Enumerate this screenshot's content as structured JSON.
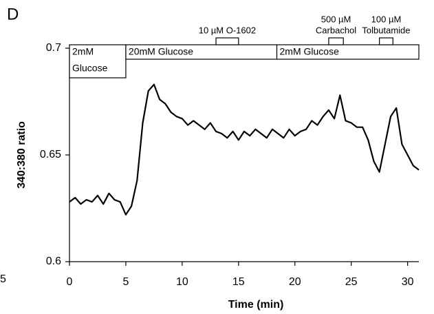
{
  "chart_data": {
    "type": "line",
    "panel": "D",
    "stray_label": "5",
    "ylabel": "340:380 ratio",
    "xlabel": "Time (min)",
    "xlim": [
      0,
      31
    ],
    "ylim": [
      0.6,
      0.7
    ],
    "xticks": [
      0,
      5,
      10,
      15,
      20,
      25,
      30
    ],
    "yticks": [
      {
        "value": 0.6,
        "label": "0.6"
      },
      {
        "value": 0.65,
        "label": "0.65"
      },
      {
        "value": 0.7,
        "label": "0.7"
      }
    ],
    "condition_bars": [
      {
        "lines": [
          "2mM",
          "Glucose"
        ],
        "x": [
          0,
          5
        ]
      },
      {
        "lines": [
          "20mM Glucose"
        ],
        "x": [
          5,
          18.4
        ]
      },
      {
        "lines": [
          "2mM Glucose"
        ],
        "x": [
          18.4,
          31
        ]
      }
    ],
    "drug_bars": [
      {
        "lines": [
          "10 µM O-1602"
        ],
        "x": [
          13,
          15
        ]
      },
      {
        "lines": [
          "500 µM",
          "Carbachol"
        ],
        "x": [
          23,
          24.3
        ]
      },
      {
        "lines": [
          "100 µM",
          "Tolbutamide"
        ],
        "x": [
          27.5,
          28.7
        ]
      }
    ],
    "series": [
      {
        "color": "#000000",
        "x": [
          0,
          0.5,
          1,
          1.5,
          2,
          2.5,
          3,
          3.5,
          4,
          4.5,
          5,
          5.5,
          6,
          6.5,
          7,
          7.5,
          8,
          8.5,
          9,
          9.5,
          10,
          10.5,
          11,
          11.5,
          12,
          12.5,
          13,
          13.5,
          14,
          14.5,
          15,
          15.5,
          16,
          16.5,
          17,
          17.5,
          18,
          18.5,
          19,
          19.5,
          20,
          20.5,
          21,
          21.5,
          22,
          22.5,
          23,
          23.5,
          24,
          24.5,
          25,
          25.5,
          26,
          26.5,
          27,
          27.5,
          28,
          28.5,
          29,
          29.5,
          30,
          30.5,
          31
        ],
        "values": [
          0.628,
          0.63,
          0.627,
          0.629,
          0.628,
          0.631,
          0.627,
          0.632,
          0.629,
          0.628,
          0.622,
          0.626,
          0.638,
          0.665,
          0.68,
          0.683,
          0.676,
          0.674,
          0.67,
          0.668,
          0.667,
          0.664,
          0.666,
          0.664,
          0.662,
          0.665,
          0.661,
          0.66,
          0.658,
          0.661,
          0.657,
          0.661,
          0.659,
          0.662,
          0.66,
          0.658,
          0.662,
          0.66,
          0.658,
          0.662,
          0.659,
          0.661,
          0.662,
          0.666,
          0.664,
          0.668,
          0.671,
          0.667,
          0.678,
          0.666,
          0.665,
          0.663,
          0.663,
          0.657,
          0.647,
          0.642,
          0.655,
          0.668,
          0.672,
          0.655,
          0.65,
          0.645,
          0.643
        ]
      }
    ]
  }
}
